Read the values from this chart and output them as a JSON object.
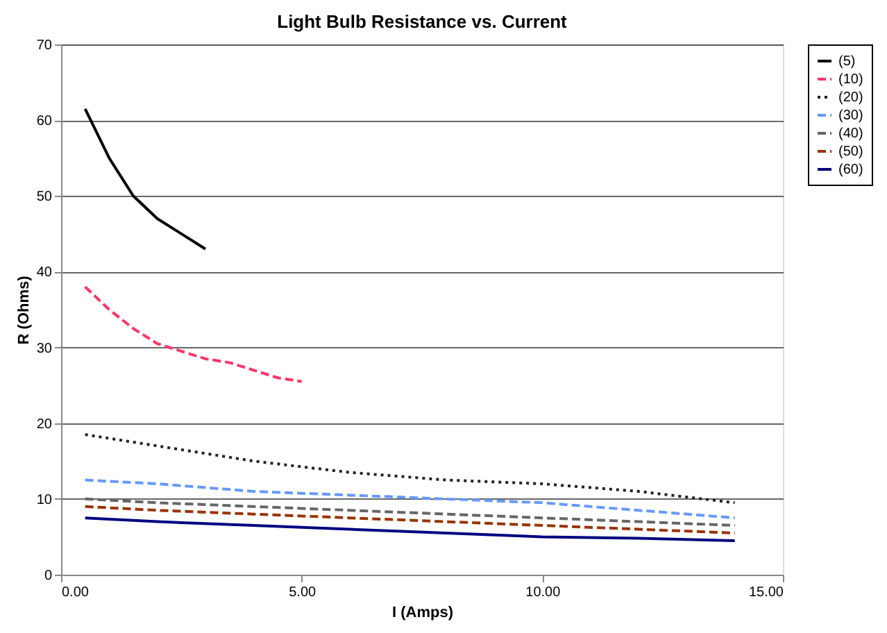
{
  "chart_data": {
    "type": "line",
    "title": "Light Bulb Resistance vs. Current",
    "xlabel": "I (Amps)",
    "ylabel": "R (Ohms)",
    "xlim": [
      0,
      15
    ],
    "xticks": [
      {
        "value": 0,
        "label": "0.00"
      },
      {
        "value": 5,
        "label": "5.00"
      },
      {
        "value": 10,
        "label": "10.00"
      },
      {
        "value": 15,
        "label": "15.00"
      }
    ],
    "ylim": [
      0,
      70
    ],
    "yticks": [
      0,
      10,
      20,
      30,
      40,
      50,
      60,
      70
    ],
    "grid": "y",
    "legend": "right",
    "marker": "none",
    "series": [
      {
        "name": "(5)",
        "color": "#000000",
        "line_style": "solid",
        "x": [
          0.5,
          1,
          1.5,
          2,
          2.5,
          3
        ],
        "values": [
          61.5,
          55,
          50,
          47,
          45,
          43
        ]
      },
      {
        "name": "(10)",
        "color": "#ff3366",
        "line_style": "dashed",
        "x": [
          0.5,
          1,
          1.5,
          2,
          2.5,
          3,
          3.5,
          4,
          4.5,
          5
        ],
        "values": [
          38,
          35,
          32.5,
          30.5,
          29.5,
          28.5,
          28,
          27,
          26,
          25.5
        ]
      },
      {
        "name": "(20)",
        "color": "#222222",
        "line_style": "dotted",
        "x": [
          0.5,
          2,
          4,
          6,
          8,
          10,
          12,
          14
        ],
        "values": [
          18.5,
          17,
          15,
          13.5,
          12.5,
          12,
          11,
          9.5
        ]
      },
      {
        "name": "(30)",
        "color": "#6699ff",
        "line_style": "dashed",
        "x": [
          0.5,
          2,
          4,
          6,
          8,
          10,
          12,
          14
        ],
        "values": [
          12.5,
          12,
          11,
          10.5,
          10,
          9.5,
          8.5,
          7.5
        ]
      },
      {
        "name": "(40)",
        "color": "#666666",
        "line_style": "dashed",
        "x": [
          0.5,
          2,
          4,
          6,
          8,
          10,
          12,
          14
        ],
        "values": [
          10,
          9.5,
          9,
          8.5,
          8,
          7.5,
          7,
          6.5
        ]
      },
      {
        "name": "(50)",
        "color": "#993300",
        "line_style": "dashed",
        "x": [
          0.5,
          2,
          4,
          6,
          8,
          10,
          12,
          14
        ],
        "values": [
          9,
          8.5,
          8,
          7.5,
          7,
          6.5,
          6,
          5.5
        ]
      },
      {
        "name": "(60)",
        "color": "#000080",
        "line_style": "solid",
        "x": [
          0.5,
          2,
          4,
          6,
          8,
          10,
          12,
          14
        ],
        "values": [
          7.5,
          7,
          6.5,
          6,
          5.5,
          5,
          4.8,
          4.5
        ]
      }
    ]
  }
}
